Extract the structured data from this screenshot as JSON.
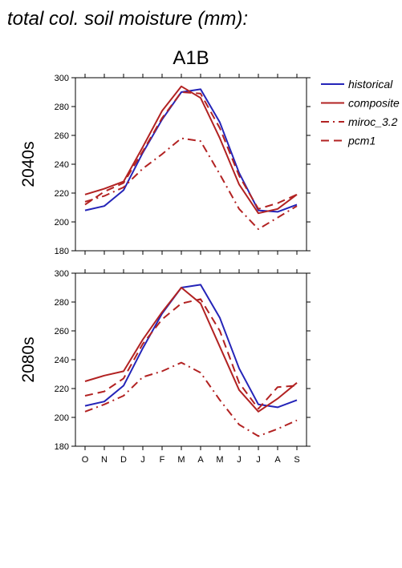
{
  "header": {
    "title": "total col. soil moisture (mm):",
    "scenario": "A1B"
  },
  "legend": {
    "position": "right",
    "entries": [
      {
        "key": "historical",
        "label": "historical",
        "color": "#2424b8",
        "dash": "solid"
      },
      {
        "key": "composite",
        "label": "composite",
        "color": "#b22222",
        "dash": "solid"
      },
      {
        "key": "miroc",
        "label": "miroc_3.2",
        "color": "#b22222",
        "dash": "dashdot"
      },
      {
        "key": "pcm",
        "label": "pcm1",
        "color": "#b22222",
        "dash": "dash"
      }
    ]
  },
  "chart_data": [
    {
      "type": "line",
      "ylabel": "2040s",
      "ylim": [
        180,
        300
      ],
      "yticks": [
        "180",
        "200",
        "220",
        "240",
        "260",
        "280",
        "300"
      ],
      "categories": [
        "O",
        "N",
        "D",
        "J",
        "F",
        "M",
        "A",
        "M",
        "J",
        "J",
        "A",
        "S"
      ],
      "series": [
        {
          "name": "historical",
          "values": [
            208,
            211,
            222,
            248,
            271,
            290,
            292,
            269,
            234,
            208,
            207,
            212
          ]
        },
        {
          "name": "composite",
          "values": [
            219,
            223,
            228,
            252,
            277,
            294,
            286,
            258,
            226,
            206,
            209,
            219
          ]
        },
        {
          "name": "miroc_3.2",
          "values": [
            214,
            218,
            224,
            237,
            247,
            258,
            256,
            233,
            209,
            195,
            203,
            211
          ]
        },
        {
          "name": "pcm1",
          "values": [
            212,
            221,
            227,
            249,
            272,
            290,
            289,
            265,
            232,
            209,
            213,
            219
          ]
        }
      ]
    },
    {
      "type": "line",
      "ylabel": "2080s",
      "ylim": [
        180,
        300
      ],
      "yticks": [
        "180",
        "200",
        "220",
        "240",
        "260",
        "280",
        "300"
      ],
      "categories": [
        "O",
        "N",
        "D",
        "J",
        "F",
        "M",
        "A",
        "M",
        "J",
        "J",
        "A",
        "S"
      ],
      "series": [
        {
          "name": "historical",
          "values": [
            208,
            211,
            222,
            248,
            272,
            290,
            292,
            269,
            234,
            209,
            207,
            212
          ]
        },
        {
          "name": "composite",
          "values": [
            225,
            229,
            232,
            254,
            273,
            290,
            279,
            249,
            219,
            204,
            213,
            224
          ]
        },
        {
          "name": "miroc_3.2",
          "values": [
            204,
            209,
            215,
            228,
            232,
            238,
            231,
            212,
            195,
            187,
            192,
            198
          ]
        },
        {
          "name": "pcm1",
          "values": [
            215,
            218,
            227,
            251,
            268,
            279,
            282,
            260,
            224,
            206,
            221,
            222
          ]
        }
      ]
    }
  ]
}
